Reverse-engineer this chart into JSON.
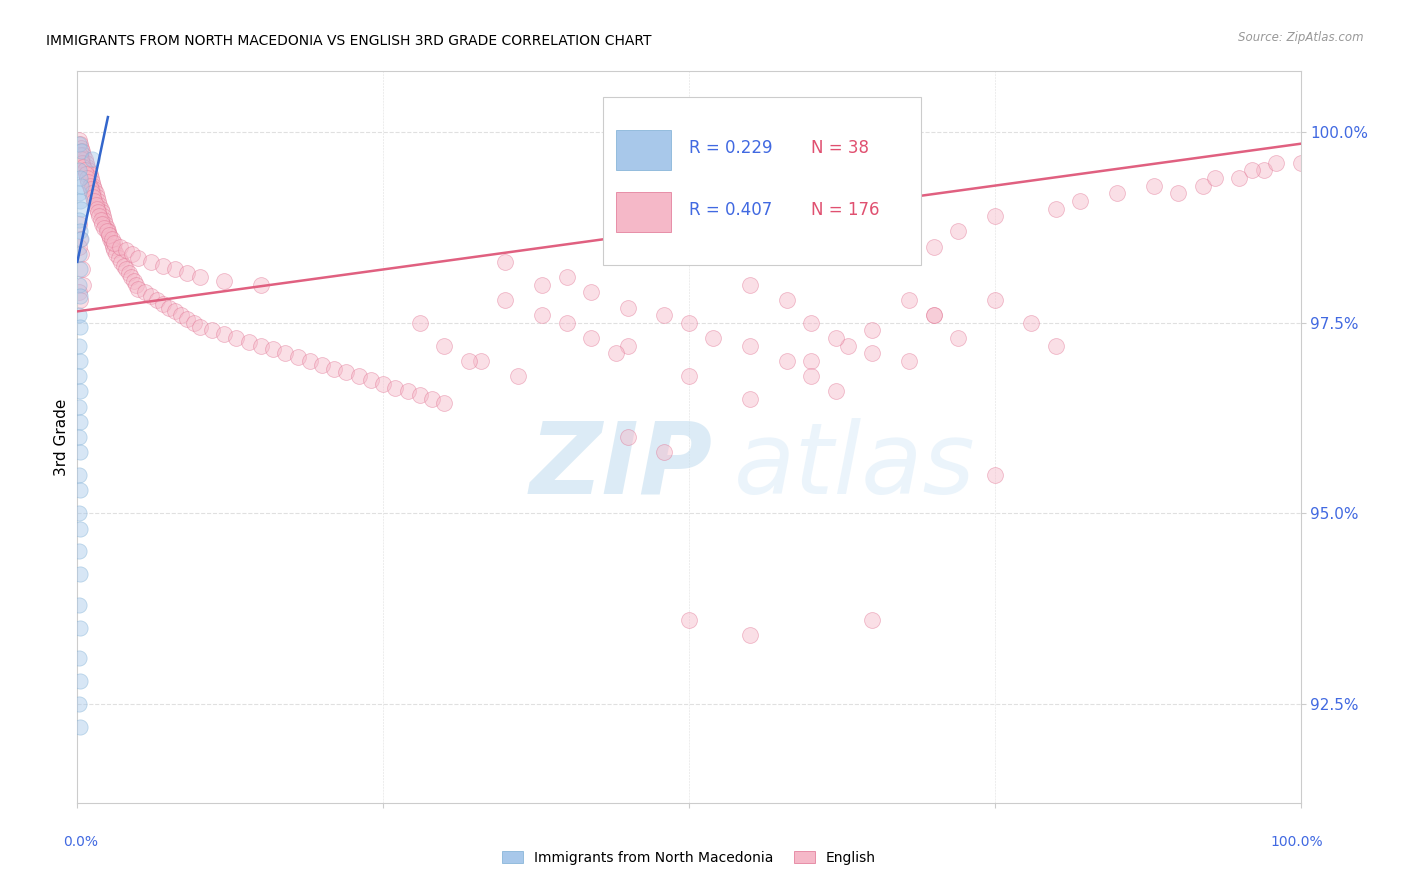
{
  "title": "IMMIGRANTS FROM NORTH MACEDONIA VS ENGLISH 3RD GRADE CORRELATION CHART",
  "source": "Source: ZipAtlas.com",
  "ylabel": "3rd Grade",
  "y_ticks": [
    92.5,
    95.0,
    97.5,
    100.0
  ],
  "y_tick_labels": [
    "92.5%",
    "95.0%",
    "97.5%",
    "100.0%"
  ],
  "xlim": [
    0.0,
    1.0
  ],
  "ylim": [
    91.2,
    100.8
  ],
  "legend_blue_label": "Immigrants from North Macedonia",
  "legend_pink_label": "English",
  "R_blue": 0.229,
  "N_blue": 38,
  "R_pink": 0.407,
  "N_pink": 176,
  "blue_scatter": [
    [
      0.001,
      99.85
    ],
    [
      0.003,
      99.75
    ],
    [
      0.012,
      99.65
    ],
    [
      0.001,
      99.5
    ],
    [
      0.002,
      99.4
    ],
    [
      0.001,
      99.2
    ],
    [
      0.002,
      99.1
    ],
    [
      0.003,
      99.0
    ],
    [
      0.001,
      98.85
    ],
    [
      0.002,
      98.7
    ],
    [
      0.003,
      98.6
    ],
    [
      0.001,
      98.4
    ],
    [
      0.002,
      98.2
    ],
    [
      0.001,
      98.0
    ],
    [
      0.002,
      97.85
    ],
    [
      0.001,
      97.6
    ],
    [
      0.002,
      97.45
    ],
    [
      0.001,
      97.2
    ],
    [
      0.002,
      97.0
    ],
    [
      0.001,
      96.8
    ],
    [
      0.002,
      96.6
    ],
    [
      0.001,
      96.4
    ],
    [
      0.002,
      96.2
    ],
    [
      0.001,
      96.0
    ],
    [
      0.002,
      95.8
    ],
    [
      0.001,
      95.5
    ],
    [
      0.002,
      95.3
    ],
    [
      0.001,
      95.0
    ],
    [
      0.002,
      94.8
    ],
    [
      0.001,
      94.5
    ],
    [
      0.002,
      94.2
    ],
    [
      0.001,
      93.8
    ],
    [
      0.002,
      93.5
    ],
    [
      0.001,
      93.1
    ],
    [
      0.002,
      92.8
    ],
    [
      0.001,
      92.5
    ],
    [
      0.002,
      92.2
    ],
    [
      0.003,
      99.3
    ]
  ],
  "pink_scatter_dense": [
    [
      0.001,
      99.9
    ],
    [
      0.002,
      99.85
    ],
    [
      0.003,
      99.8
    ],
    [
      0.004,
      99.75
    ],
    [
      0.005,
      99.7
    ],
    [
      0.006,
      99.65
    ],
    [
      0.007,
      99.6
    ],
    [
      0.008,
      99.55
    ],
    [
      0.009,
      99.5
    ],
    [
      0.01,
      99.45
    ],
    [
      0.011,
      99.4
    ],
    [
      0.012,
      99.35
    ],
    [
      0.013,
      99.3
    ],
    [
      0.014,
      99.25
    ],
    [
      0.015,
      99.2
    ],
    [
      0.016,
      99.15
    ],
    [
      0.017,
      99.1
    ],
    [
      0.018,
      99.05
    ],
    [
      0.019,
      99.0
    ],
    [
      0.02,
      98.95
    ],
    [
      0.021,
      98.9
    ],
    [
      0.022,
      98.85
    ],
    [
      0.023,
      98.8
    ],
    [
      0.024,
      98.75
    ],
    [
      0.025,
      98.7
    ],
    [
      0.026,
      98.65
    ],
    [
      0.027,
      98.6
    ],
    [
      0.028,
      98.55
    ],
    [
      0.029,
      98.5
    ],
    [
      0.03,
      98.45
    ],
    [
      0.032,
      98.4
    ],
    [
      0.034,
      98.35
    ],
    [
      0.036,
      98.3
    ],
    [
      0.038,
      98.25
    ],
    [
      0.04,
      98.2
    ],
    [
      0.042,
      98.15
    ],
    [
      0.044,
      98.1
    ],
    [
      0.046,
      98.05
    ],
    [
      0.048,
      98.0
    ],
    [
      0.05,
      97.95
    ],
    [
      0.055,
      97.9
    ],
    [
      0.06,
      97.85
    ],
    [
      0.065,
      97.8
    ],
    [
      0.07,
      97.75
    ],
    [
      0.075,
      97.7
    ],
    [
      0.08,
      97.65
    ],
    [
      0.085,
      97.6
    ],
    [
      0.09,
      97.55
    ],
    [
      0.095,
      97.5
    ],
    [
      0.1,
      97.45
    ],
    [
      0.11,
      97.4
    ],
    [
      0.12,
      97.35
    ],
    [
      0.13,
      97.3
    ],
    [
      0.14,
      97.25
    ],
    [
      0.15,
      97.2
    ],
    [
      0.16,
      97.15
    ],
    [
      0.17,
      97.1
    ],
    [
      0.18,
      97.05
    ],
    [
      0.19,
      97.0
    ],
    [
      0.2,
      96.95
    ],
    [
      0.21,
      96.9
    ],
    [
      0.22,
      96.85
    ],
    [
      0.23,
      96.8
    ],
    [
      0.24,
      96.75
    ],
    [
      0.25,
      96.7
    ],
    [
      0.26,
      96.65
    ],
    [
      0.27,
      96.6
    ],
    [
      0.28,
      96.55
    ],
    [
      0.29,
      96.5
    ],
    [
      0.3,
      96.45
    ],
    [
      0.002,
      99.7
    ],
    [
      0.003,
      99.65
    ],
    [
      0.004,
      99.6
    ],
    [
      0.005,
      99.55
    ],
    [
      0.006,
      99.5
    ],
    [
      0.007,
      99.45
    ],
    [
      0.008,
      99.4
    ],
    [
      0.009,
      99.35
    ],
    [
      0.01,
      99.3
    ],
    [
      0.011,
      99.25
    ],
    [
      0.012,
      99.2
    ],
    [
      0.013,
      99.15
    ],
    [
      0.014,
      99.1
    ],
    [
      0.015,
      99.05
    ],
    [
      0.016,
      99.0
    ],
    [
      0.017,
      98.95
    ],
    [
      0.018,
      98.9
    ],
    [
      0.019,
      98.85
    ],
    [
      0.02,
      98.8
    ],
    [
      0.022,
      98.75
    ],
    [
      0.024,
      98.7
    ],
    [
      0.026,
      98.65
    ],
    [
      0.028,
      98.6
    ],
    [
      0.03,
      98.55
    ],
    [
      0.035,
      98.5
    ],
    [
      0.04,
      98.45
    ],
    [
      0.045,
      98.4
    ],
    [
      0.05,
      98.35
    ],
    [
      0.06,
      98.3
    ],
    [
      0.07,
      98.25
    ],
    [
      0.08,
      98.2
    ],
    [
      0.09,
      98.15
    ],
    [
      0.1,
      98.1
    ],
    [
      0.12,
      98.05
    ],
    [
      0.15,
      98.0
    ],
    [
      0.001,
      98.8
    ],
    [
      0.002,
      98.6
    ],
    [
      0.003,
      98.4
    ],
    [
      0.004,
      98.2
    ],
    [
      0.005,
      98.0
    ],
    [
      0.001,
      98.5
    ],
    [
      0.001,
      97.9
    ],
    [
      0.002,
      97.8
    ]
  ],
  "pink_scatter_spread": [
    [
      0.35,
      98.3
    ],
    [
      0.4,
      98.1
    ],
    [
      0.42,
      97.9
    ],
    [
      0.38,
      98.0
    ],
    [
      0.45,
      97.7
    ],
    [
      0.5,
      97.5
    ],
    [
      0.48,
      97.6
    ],
    [
      0.55,
      98.0
    ],
    [
      0.58,
      97.8
    ],
    [
      0.52,
      97.3
    ],
    [
      0.6,
      97.5
    ],
    [
      0.63,
      97.2
    ],
    [
      0.65,
      97.4
    ],
    [
      0.68,
      97.0
    ],
    [
      0.7,
      97.6
    ],
    [
      0.72,
      97.3
    ],
    [
      0.75,
      97.8
    ],
    [
      0.78,
      97.5
    ],
    [
      0.8,
      97.2
    ],
    [
      0.55,
      97.2
    ],
    [
      0.6,
      97.0
    ],
    [
      0.65,
      97.1
    ],
    [
      0.4,
      97.5
    ],
    [
      0.45,
      97.2
    ],
    [
      0.5,
      96.8
    ],
    [
      0.55,
      96.5
    ],
    [
      0.6,
      96.8
    ],
    [
      0.62,
      96.6
    ],
    [
      0.35,
      97.8
    ],
    [
      0.38,
      97.6
    ],
    [
      0.7,
      98.5
    ],
    [
      0.72,
      98.7
    ],
    [
      0.75,
      98.9
    ],
    [
      0.8,
      99.0
    ],
    [
      0.82,
      99.1
    ],
    [
      0.85,
      99.2
    ],
    [
      0.88,
      99.3
    ],
    [
      0.9,
      99.2
    ],
    [
      0.92,
      99.3
    ],
    [
      0.95,
      99.4
    ],
    [
      0.97,
      99.5
    ],
    [
      1.0,
      99.6
    ],
    [
      0.93,
      99.4
    ],
    [
      0.96,
      99.5
    ],
    [
      0.98,
      99.6
    ],
    [
      0.5,
      93.6
    ],
    [
      0.55,
      93.4
    ],
    [
      0.65,
      93.6
    ],
    [
      0.75,
      95.5
    ],
    [
      0.45,
      96.0
    ],
    [
      0.48,
      95.8
    ],
    [
      0.33,
      97.0
    ],
    [
      0.36,
      96.8
    ],
    [
      0.28,
      97.5
    ],
    [
      0.3,
      97.2
    ],
    [
      0.32,
      97.0
    ],
    [
      0.58,
      97.0
    ],
    [
      0.62,
      97.3
    ],
    [
      0.68,
      97.8
    ],
    [
      0.7,
      97.6
    ],
    [
      0.42,
      97.3
    ],
    [
      0.44,
      97.1
    ]
  ],
  "blue_line": [
    [
      0.0,
      98.3
    ],
    [
      0.025,
      100.2
    ]
  ],
  "pink_line": [
    [
      0.0,
      97.65
    ],
    [
      1.0,
      99.85
    ]
  ],
  "watermark_zip": "ZIP",
  "watermark_atlas": "atlas",
  "marker_size_blue": 120,
  "marker_size_pink": 130,
  "scatter_alpha": 0.45,
  "tick_color": "#4169e1",
  "blue_color": "#a8c8ea",
  "blue_edge": "#7aadd4",
  "pink_color": "#f5b8c8",
  "pink_edge": "#e07090",
  "blue_line_color": "#3366cc",
  "pink_line_color": "#e06080"
}
